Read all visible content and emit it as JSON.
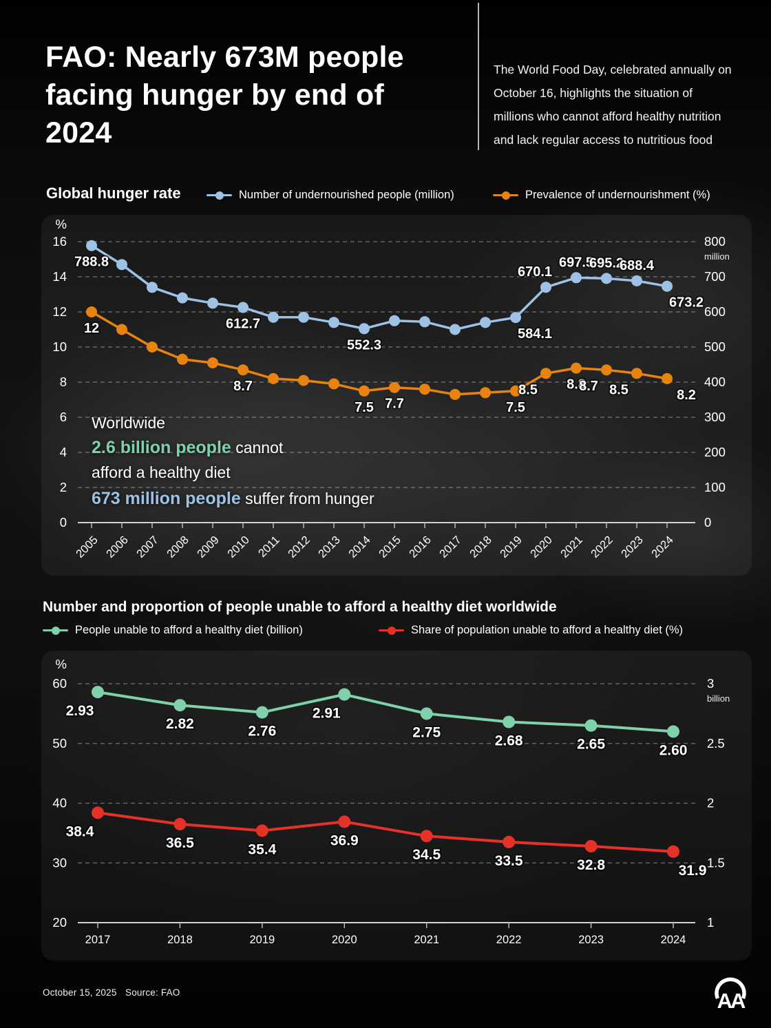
{
  "infographic": {
    "title_lines": [
      "FAO: Nearly 673M people",
      "facing hunger by end of",
      "2024"
    ],
    "subtitle": "The World Food Day, celebrated annually on October 16, highlights the situation of millions who cannot afford healthy nutrition and lack regular access to nutritious food",
    "footer": {
      "date": "October 15, 2025",
      "source_label": "Source: FAO",
      "agency_logo_icon": "anadolu-agency-aa-logo"
    }
  },
  "colors": {
    "background": "#060606",
    "panel": "rgba(255,255,255,0.055)",
    "undernourished_blue": "#9dc2e6",
    "prevalence_orange": "#e8830f",
    "healthy_diet_green": "#7fd1ab",
    "share_red": "#e53228",
    "grid": "rgba(255,255,255,0.38)",
    "axis_line": "#d2d2d2",
    "text": "#ffffff"
  },
  "chart_data": [
    {
      "type": "line",
      "title": "Global hunger rate",
      "categories": [
        "2005",
        "2006",
        "2007",
        "2008",
        "2009",
        "2010",
        "2011",
        "2012",
        "2013",
        "2014",
        "2015",
        "2016",
        "2017",
        "2018",
        "2019",
        "2020",
        "2021",
        "2022",
        "2023",
        "2024"
      ],
      "left_axis": {
        "unit": "%",
        "min": 0,
        "max": 16,
        "ticks": [
          16,
          14,
          12,
          10,
          8,
          6,
          4,
          2,
          0
        ]
      },
      "right_axis": {
        "unit": "million",
        "min": 0,
        "max": 800,
        "ticks": [
          800,
          700,
          600,
          500,
          400,
          300,
          200,
          100,
          0
        ]
      },
      "grid": "dashed",
      "legend_position": "top",
      "series": [
        {
          "name": "Number of undernourished people (million)",
          "slug": "undernourished-people",
          "color": "#9dc2e6",
          "axis": "right",
          "values": [
            788.8,
            735,
            670,
            640,
            625,
            612.7,
            585,
            585,
            570,
            552.3,
            575,
            572,
            550,
            570,
            584.1,
            670.1,
            697.5,
            695.2,
            688.4,
            673.2
          ],
          "labels": [
            "788.8",
            null,
            null,
            null,
            null,
            "612.7",
            null,
            null,
            null,
            "552.3",
            null,
            null,
            null,
            null,
            "584.1",
            "670.1",
            "697.5",
            "695.2",
            "688.4",
            "673.2"
          ],
          "label_side": [
            "below",
            null,
            null,
            null,
            null,
            "below",
            null,
            null,
            null,
            "below",
            null,
            null,
            null,
            null,
            "below-right",
            "above-left",
            "above",
            "above",
            "above",
            "below-right"
          ]
        },
        {
          "name": "Prevalence of undernourishment (%)",
          "slug": "prevalence-undernourishment",
          "color": "#e8830f",
          "axis": "left",
          "values": [
            12,
            11,
            10,
            9.3,
            9.1,
            8.7,
            8.2,
            8.1,
            7.9,
            7.5,
            7.7,
            7.6,
            7.3,
            7.4,
            7.5,
            8.5,
            8.8,
            8.7,
            8.5,
            8.2
          ],
          "labels": [
            "12",
            null,
            null,
            null,
            null,
            "8.7",
            null,
            null,
            null,
            "7.5",
            "7.7",
            null,
            null,
            null,
            "7.5",
            "8.5",
            "8.8",
            "8.7",
            "8.5",
            "8.2"
          ],
          "label_side": [
            "below",
            null,
            null,
            null,
            null,
            "below",
            null,
            null,
            null,
            "below",
            "below",
            null,
            null,
            null,
            "below",
            "below-left",
            "below",
            "below-left",
            "below-left",
            "below-right"
          ]
        }
      ],
      "annotation": {
        "line1": "Worldwide",
        "line2_highlight": "2.6 billion people",
        "line2_rest": " cannot",
        "line3": "afford a healthy diet",
        "line4_highlight": "673 million people",
        "line4_rest": " suffer from hunger"
      }
    },
    {
      "type": "line",
      "title": "Number and proportion of people unable to afford a healthy diet worldwide",
      "categories": [
        "2017",
        "2018",
        "2019",
        "2020",
        "2021",
        "2022",
        "2023",
        "2024"
      ],
      "left_axis": {
        "unit": "%",
        "min": 20,
        "max": 60,
        "ticks": [
          60,
          50,
          40,
          30,
          20
        ]
      },
      "right_axis": {
        "unit": "billion",
        "min": 1,
        "max": 3,
        "ticks": [
          3,
          2.5,
          2,
          1.5,
          1
        ]
      },
      "grid": "dashed",
      "legend_position": "top",
      "series": [
        {
          "name": "People unable to afford a healthy diet (billion)",
          "slug": "people-unable-afford-diet",
          "color": "#7fd1ab",
          "axis": "right",
          "values": [
            2.93,
            2.82,
            2.76,
            2.91,
            2.75,
            2.68,
            2.65,
            2.6
          ],
          "labels": [
            "2.93",
            "2.82",
            "2.76",
            "2.91",
            "2.75",
            "2.68",
            "2.65",
            "2.60"
          ],
          "label_side": [
            "below-left",
            "below",
            "below",
            "below-left",
            "below",
            "below",
            "below",
            "below"
          ]
        },
        {
          "name": "Share of population unable to afford a healthy diet (%)",
          "slug": "share-population-unable",
          "color": "#e53228",
          "axis": "left",
          "values": [
            38.4,
            36.5,
            35.4,
            36.9,
            34.5,
            33.5,
            32.8,
            31.9
          ],
          "labels": [
            "38.4",
            "36.5",
            "35.4",
            "36.9",
            "34.5",
            "33.5",
            "32.8",
            "31.9"
          ],
          "label_side": [
            "below-left",
            "below",
            "below",
            "below",
            "below",
            "below",
            "below",
            "below-right"
          ]
        }
      ]
    }
  ]
}
